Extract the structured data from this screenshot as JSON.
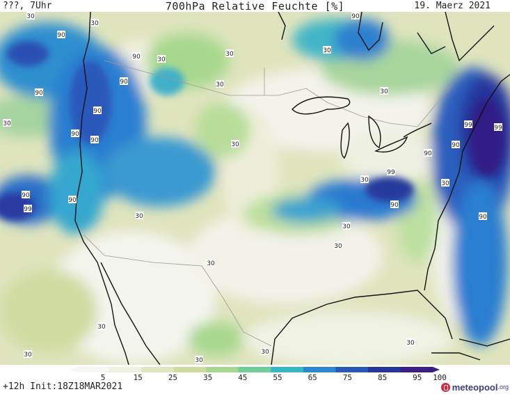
{
  "header": {
    "left": "???, 7Uhr",
    "title": "700hPa Relative Feuchte [%]",
    "date": "19. Maerz 2021"
  },
  "map": {
    "region": "North America",
    "variable": "700hPa relative humidity",
    "contour_labels": [
      "90",
      "90",
      "90",
      "90",
      "90",
      "90",
      "90",
      "90",
      "90",
      "90",
      "90",
      "90",
      "90",
      "90",
      "99",
      "99",
      "99",
      "99",
      "30",
      "30",
      "30",
      "30",
      "30",
      "30",
      "30",
      "30",
      "30",
      "30",
      "30",
      "30",
      "30",
      "30",
      "30",
      "30",
      "30",
      "30",
      "30",
      "30"
    ]
  },
  "colorbar": {
    "ticks": [
      "5",
      "15",
      "25",
      "35",
      "45",
      "55",
      "65",
      "75",
      "85",
      "95",
      "100"
    ],
    "colors": [
      "#f7f7f3",
      "#f0f0e0",
      "#e2e6c0",
      "#cfdca0",
      "#a6d690",
      "#6ccf98",
      "#35b8c4",
      "#2a86d4",
      "#2859b8",
      "#26369a",
      "#3b1e86"
    ]
  },
  "footer": {
    "run_info": "+12h Init:18Z18MAR2021",
    "brand_name": "meteopool",
    "brand_tld": ".org"
  },
  "colors": {
    "coast": "#111111",
    "border": "#9a9a9a",
    "label_bg": "#ffffff"
  }
}
